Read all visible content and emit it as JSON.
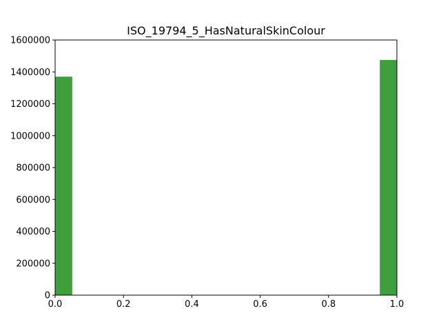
{
  "chart_data": {
    "type": "bar",
    "title": "ISO_19794_5_HasNaturalSkinColour",
    "xlabel": "",
    "ylabel": "",
    "xlim": [
      0.0,
      1.0
    ],
    "ylim": [
      0,
      1600000
    ],
    "grid": false,
    "bar_color": "#3f9f3f",
    "bins": [
      {
        "x_start": 0.0,
        "x_end": 0.05,
        "value": 1370000
      },
      {
        "x_start": 0.95,
        "x_end": 1.0,
        "value": 1475000
      }
    ],
    "x_ticks": [
      0.0,
      0.2,
      0.4,
      0.6,
      0.8,
      1.0
    ],
    "x_tick_labels": [
      "0.0",
      "0.2",
      "0.4",
      "0.6",
      "0.8",
      "1.0"
    ],
    "y_ticks": [
      0,
      200000,
      400000,
      600000,
      800000,
      1000000,
      1200000,
      1400000,
      1600000
    ],
    "y_tick_labels": [
      "0",
      "200000",
      "400000",
      "600000",
      "800000",
      "1000000",
      "1200000",
      "1400000",
      "1600000"
    ]
  }
}
